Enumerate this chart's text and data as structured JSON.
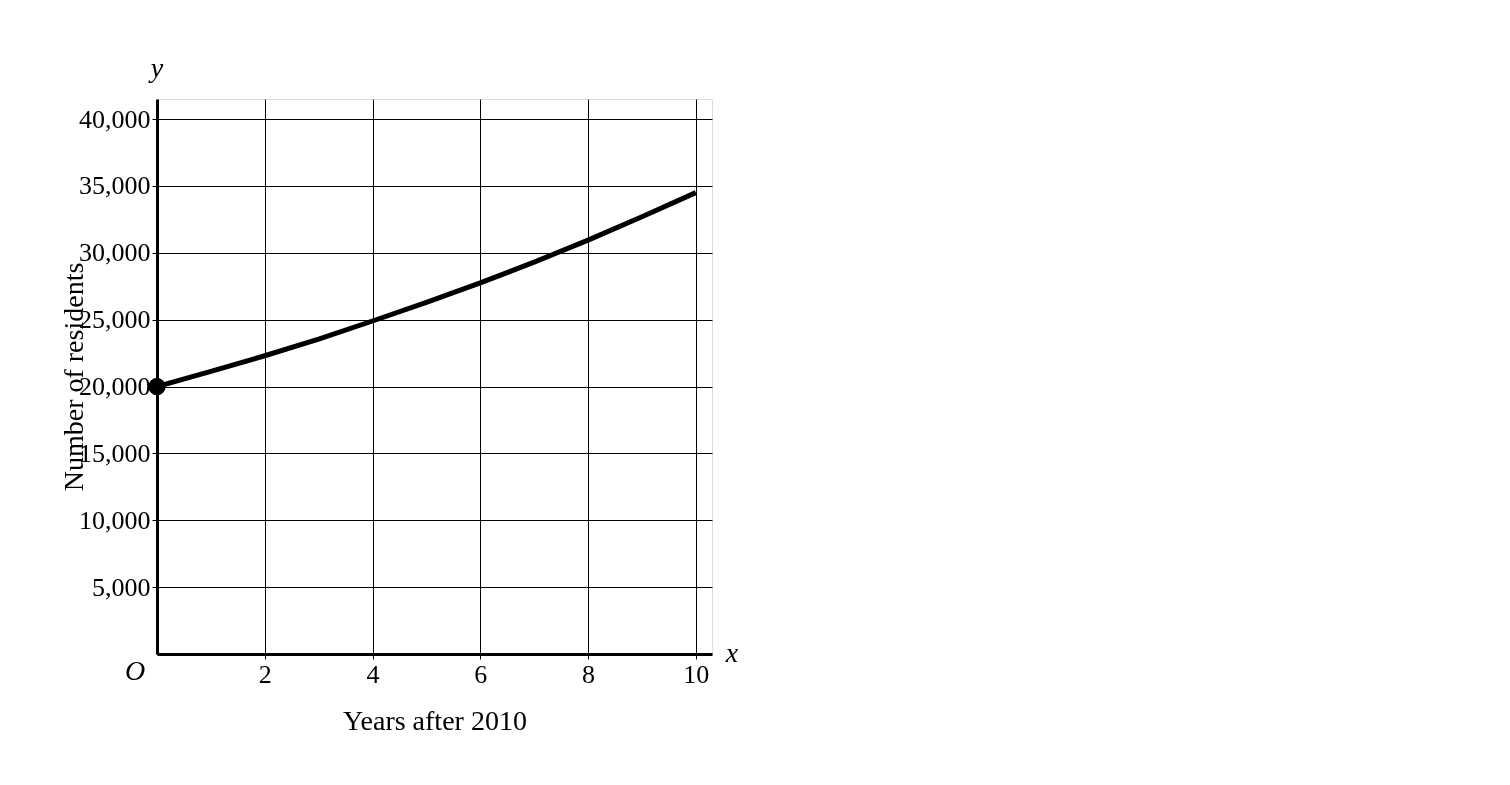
{
  "chart_data": {
    "type": "line",
    "xlabel": "Years after 2010",
    "ylabel": "Number of residents",
    "annotations": [
      "O",
      "x",
      "y"
    ],
    "xlim": [
      0,
      10.3
    ],
    "ylim": [
      0,
      41500
    ],
    "xticks": [
      2,
      4,
      6,
      8,
      10
    ],
    "yticks": [
      {
        "value": 5000,
        "label": "5,000"
      },
      {
        "value": 10000,
        "label": "10,000"
      },
      {
        "value": 15000,
        "label": "15,000"
      },
      {
        "value": 20000,
        "label": "20,000"
      },
      {
        "value": 25000,
        "label": "25,000"
      },
      {
        "value": 30000,
        "label": "30,000"
      },
      {
        "value": 35000,
        "label": "35,000"
      },
      {
        "value": 40000,
        "label": "40,000"
      }
    ],
    "grid": true,
    "series": [
      {
        "color": "#000000",
        "marker": "none",
        "x": [
          0,
          1,
          2,
          3,
          4,
          5,
          6,
          7,
          8,
          9,
          10
        ],
        "values": [
          20000,
          21130,
          22300,
          23550,
          24900,
          26300,
          27750,
          29300,
          30950,
          32700,
          34500
        ]
      },
      {
        "type": "scatter",
        "color": "#000000",
        "marker": "circle",
        "x": [
          0
        ],
        "values": [
          20000
        ]
      }
    ]
  }
}
